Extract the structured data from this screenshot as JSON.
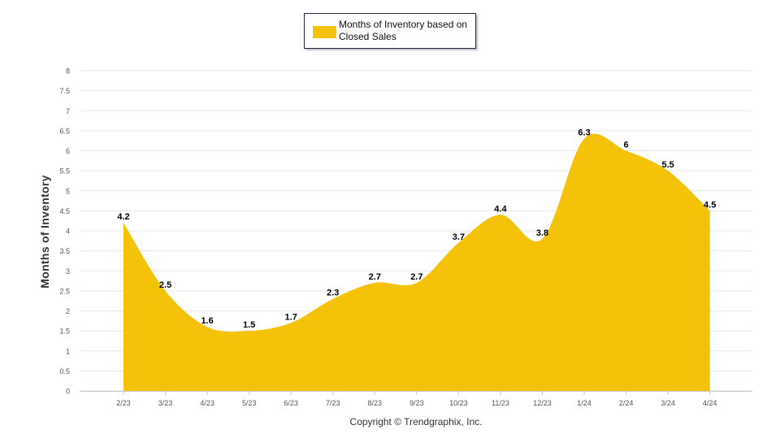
{
  "chart_data": {
    "type": "area",
    "title": "",
    "legend": {
      "position": "top-center",
      "entries": [
        {
          "label": "Months of Inventory based on Closed Sales",
          "color": "#f5c20a"
        }
      ]
    },
    "xlabel": "",
    "ylabel": "Months of Inventory",
    "categories": [
      "2/23",
      "3/23",
      "4/23",
      "5/23",
      "6/23",
      "7/23",
      "8/23",
      "9/23",
      "10/23",
      "11/23",
      "12/23",
      "1/24",
      "2/24",
      "3/24",
      "4/24"
    ],
    "series": [
      {
        "name": "Months of Inventory based on Closed Sales",
        "values": [
          4.2,
          2.5,
          1.6,
          1.5,
          1.7,
          2.3,
          2.7,
          2.7,
          3.7,
          4.4,
          3.8,
          6.3,
          6,
          5.5,
          4.5
        ]
      }
    ],
    "data_labels": [
      "4.2",
      "2.5",
      "1.6",
      "1.5",
      "1.7",
      "2.3",
      "2.7",
      "2.7",
      "3.7",
      "4.4",
      "3.8",
      "6.3",
      "6",
      "5.5",
      "4.5"
    ],
    "yticks": [
      "0",
      "0.5",
      "1",
      "1.5",
      "2",
      "2.5",
      "3",
      "3.5",
      "4",
      "4.5",
      "5",
      "5.5",
      "6",
      "6.5",
      "7",
      "7.5",
      "8"
    ],
    "ylim": [
      0,
      8
    ],
    "ystep": 0.5,
    "grid": true,
    "fill_color": "#f5c20a"
  },
  "footer": {
    "copyright": "Copyright © Trendgraphix, Inc."
  }
}
